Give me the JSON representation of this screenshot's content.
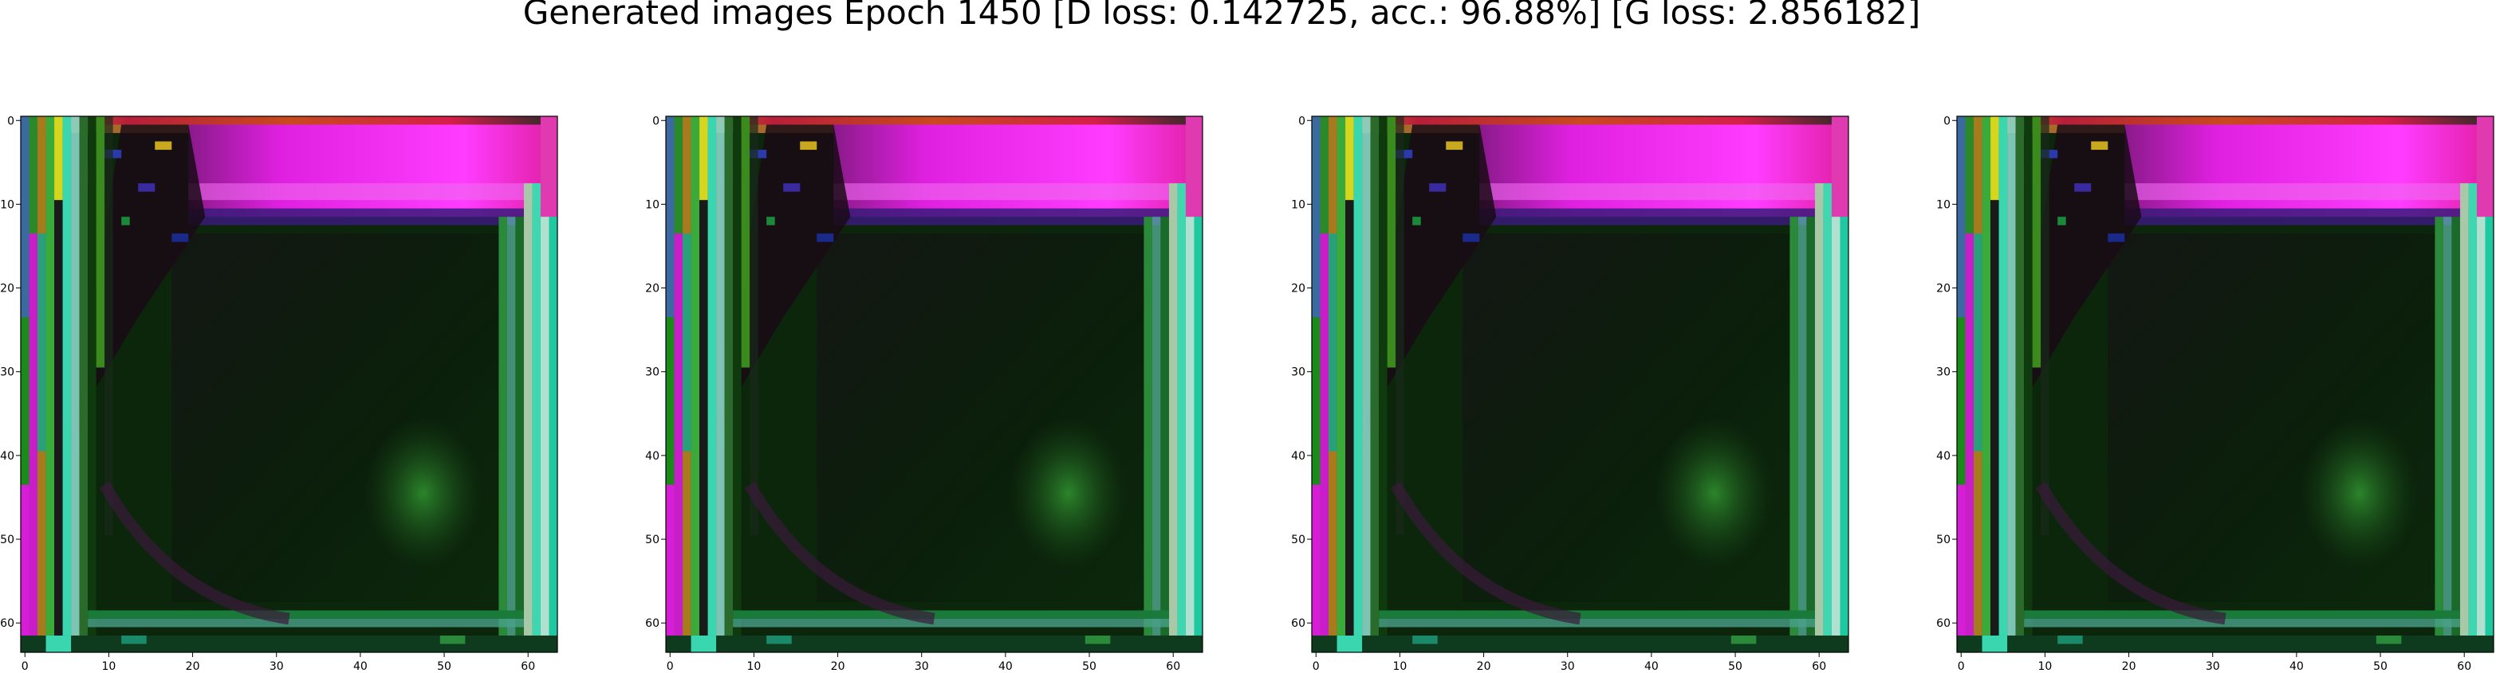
{
  "figure": {
    "title": "Generated images Epoch 1450 [D loss: 0.142725, acc.: 96.88%] [G loss: 2.856182]"
  },
  "chart_data": [
    {
      "type": "heatmap",
      "title": "",
      "xlabel": "",
      "ylabel": "",
      "xlim": [
        -0.5,
        63.5
      ],
      "ylim": [
        63.5,
        -0.5
      ],
      "x_ticks": [
        "0",
        "10",
        "20",
        "30",
        "40",
        "50",
        "60"
      ],
      "y_ticks": [
        "0",
        "10",
        "20",
        "30",
        "40",
        "50",
        "60"
      ],
      "grid": false,
      "legend": "none"
    },
    {
      "type": "heatmap",
      "title": "",
      "xlabel": "",
      "ylabel": "",
      "xlim": [
        -0.5,
        63.5
      ],
      "ylim": [
        63.5,
        -0.5
      ],
      "x_ticks": [
        "0",
        "10",
        "20",
        "30",
        "40",
        "50",
        "60"
      ],
      "y_ticks": [
        "0",
        "10",
        "20",
        "30",
        "40",
        "50",
        "60"
      ],
      "grid": false,
      "legend": "none"
    },
    {
      "type": "heatmap",
      "title": "",
      "xlabel": "",
      "ylabel": "",
      "xlim": [
        -0.5,
        63.5
      ],
      "ylim": [
        63.5,
        -0.5
      ],
      "x_ticks": [
        "0",
        "10",
        "20",
        "30",
        "40",
        "50",
        "60"
      ],
      "y_ticks": [
        "0",
        "10",
        "20",
        "30",
        "40",
        "50",
        "60"
      ],
      "grid": false,
      "legend": "none"
    },
    {
      "type": "heatmap",
      "title": "",
      "xlabel": "",
      "ylabel": "",
      "xlim": [
        -0.5,
        63.5
      ],
      "ylim": [
        63.5,
        -0.5
      ],
      "x_ticks": [
        "0",
        "10",
        "20",
        "30",
        "40",
        "50",
        "60"
      ],
      "y_ticks": [
        "0",
        "10",
        "20",
        "30",
        "40",
        "50",
        "60"
      ],
      "grid": false,
      "legend": "none"
    }
  ],
  "colors": {
    "magenta_band": "#e61ee6",
    "dark_green": "#0c2a0c",
    "panel_border": "#000000",
    "accent_cyan": "#3fd6b0",
    "accent_yellow": "#d6d61e"
  }
}
